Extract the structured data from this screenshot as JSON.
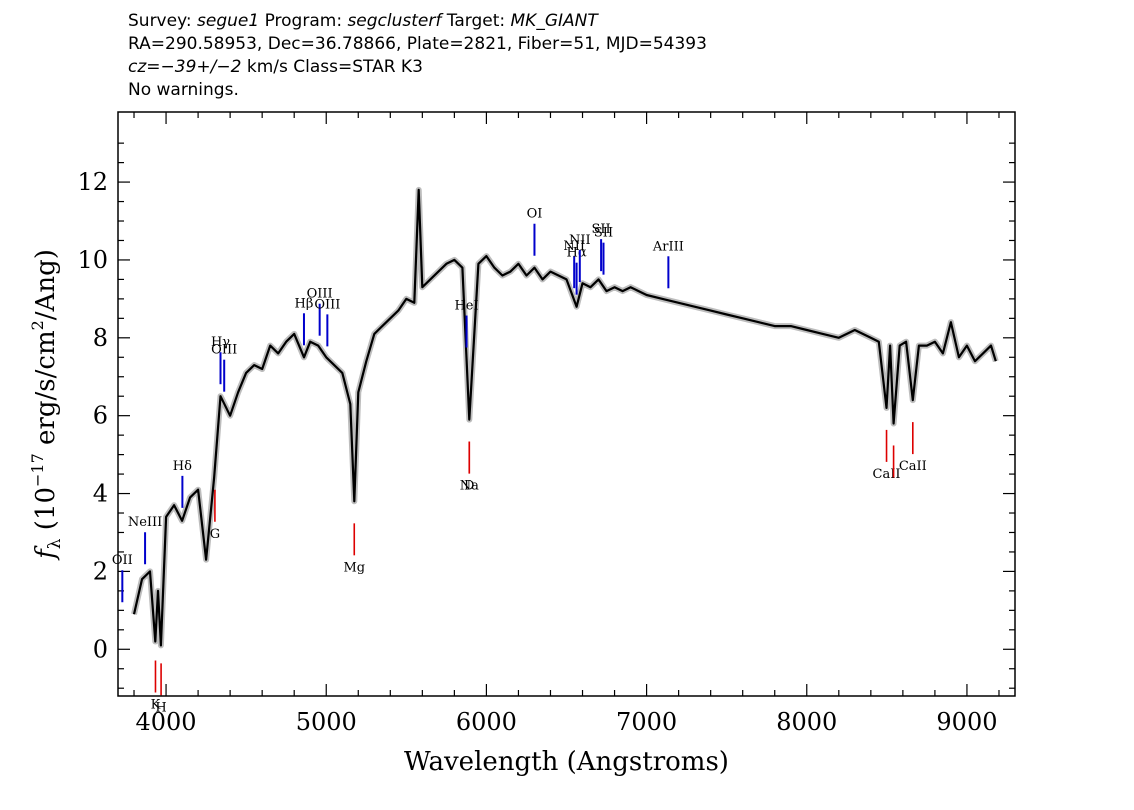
{
  "header": {
    "line1": {
      "survey_label": "Survey: ",
      "survey": "segue1",
      "program_label": " Program: ",
      "program": "segclusterf",
      "target_label": " Target: ",
      "target": "MK_GIANT"
    },
    "line2": "RA=290.58953, Dec=36.78866, Plate=2821, Fiber=51, MJD=54393",
    "line3": {
      "cz": "cz",
      "cz_eq": "=",
      "cz_value": "−39+/−2",
      "cz_rest": " km/s Class=STAR K3"
    },
    "line4": "No warnings."
  },
  "chart_data": {
    "type": "line",
    "xlabel": "Wavelength (Angstroms)",
    "ylabel": "fλ (10⁻¹⁷ erg/s/cm²/Ang)",
    "ylabel_parts": {
      "f": "f",
      "sub": "λ",
      "pre": " (10",
      "exp": "−17",
      "mid": " erg/s/cm",
      "exp2": "2",
      "post": "/Ang)"
    },
    "xlim": [
      3700,
      9300
    ],
    "ylim": [
      -1.2,
      13.8
    ],
    "x_ticks": [
      4000,
      5000,
      6000,
      7000,
      8000,
      9000
    ],
    "x_tick_labels": [
      "4000",
      "5000",
      "6000",
      "7000",
      "8000",
      "9000"
    ],
    "y_ticks": [
      0,
      2,
      4,
      6,
      8,
      10,
      12
    ],
    "y_tick_labels": [
      "0",
      "2",
      "4",
      "6",
      "8",
      "10",
      "12"
    ],
    "grid": false,
    "series": [
      {
        "style": "flux",
        "color": "#000000",
        "x": [
          3800,
          3850,
          3900,
          3933,
          3950,
          3968,
          4000,
          4050,
          4100,
          4150,
          4200,
          4250,
          4300,
          4340,
          4400,
          4450,
          4500,
          4550,
          4600,
          4650,
          4700,
          4750,
          4800,
          4861,
          4900,
          4950,
          5000,
          5050,
          5100,
          5150,
          5175,
          5200,
          5250,
          5300,
          5350,
          5400,
          5450,
          5500,
          5550,
          5577,
          5600,
          5650,
          5700,
          5750,
          5800,
          5850,
          5893,
          5950,
          6000,
          6050,
          6100,
          6150,
          6200,
          6250,
          6300,
          6350,
          6400,
          6450,
          6500,
          6563,
          6600,
          6650,
          6700,
          6750,
          6800,
          6850,
          6900,
          6950,
          7000,
          7100,
          7200,
          7300,
          7400,
          7500,
          7600,
          7700,
          7800,
          7900,
          8000,
          8100,
          8200,
          8300,
          8400,
          8450,
          8498,
          8520,
          8542,
          8580,
          8620,
          8662,
          8700,
          8750,
          8800,
          8850,
          8900,
          8950,
          9000,
          9050,
          9100,
          9150,
          9180
        ],
        "y": [
          0.9,
          1.8,
          2.0,
          0.2,
          1.5,
          0.1,
          3.4,
          3.7,
          3.3,
          3.9,
          4.1,
          2.3,
          4.4,
          6.5,
          6.0,
          6.6,
          7.1,
          7.3,
          7.2,
          7.8,
          7.6,
          7.9,
          8.1,
          7.5,
          7.9,
          7.8,
          7.5,
          7.3,
          7.1,
          6.3,
          3.8,
          6.6,
          7.4,
          8.1,
          8.3,
          8.5,
          8.7,
          9.0,
          8.9,
          11.8,
          9.3,
          9.5,
          9.7,
          9.9,
          10.0,
          9.8,
          5.9,
          9.9,
          10.1,
          9.8,
          9.6,
          9.7,
          9.9,
          9.6,
          9.8,
          9.5,
          9.7,
          9.6,
          9.5,
          8.8,
          9.4,
          9.3,
          9.5,
          9.2,
          9.3,
          9.2,
          9.3,
          9.2,
          9.1,
          9.0,
          8.9,
          8.8,
          8.7,
          8.6,
          8.5,
          8.4,
          8.3,
          8.3,
          8.2,
          8.1,
          8.0,
          8.2,
          8.0,
          7.9,
          6.2,
          7.8,
          5.8,
          7.8,
          7.9,
          6.4,
          7.8,
          7.8,
          7.9,
          7.6,
          8.4,
          7.5,
          7.8,
          7.4,
          7.6,
          7.8,
          7.4
        ]
      }
    ],
    "line_markers": [
      {
        "label": "OII",
        "x": 3727,
        "color": "#0000cc",
        "side": "upper"
      },
      {
        "label": "NeIII",
        "x": 3869,
        "color": "#0000cc",
        "side": "upper"
      },
      {
        "label": "Hδ",
        "x": 4102,
        "color": "#0000cc",
        "side": "upper"
      },
      {
        "label": "Hγ",
        "x": 4340,
        "color": "#0000cc",
        "side": "upper"
      },
      {
        "label": "OIII",
        "x": 4363,
        "color": "#0000cc",
        "side": "upper"
      },
      {
        "label": "Hβ",
        "x": 4861,
        "color": "#0000cc",
        "side": "upper"
      },
      {
        "label": "OIII",
        "x": 4959,
        "color": "#0000cc",
        "side": "upper"
      },
      {
        "label": "OIII",
        "x": 5007,
        "color": "#0000cc",
        "side": "upper"
      },
      {
        "label": "HeI",
        "x": 5876,
        "color": "#0000cc",
        "side": "upper"
      },
      {
        "label": "OI",
        "x": 6300,
        "color": "#0000cc",
        "side": "upper"
      },
      {
        "label": "NII",
        "x": 6548,
        "color": "#0000cc",
        "side": "upper"
      },
      {
        "label": "Hα",
        "x": 6563,
        "color": "#0000cc",
        "side": "upper"
      },
      {
        "label": "NII",
        "x": 6583,
        "color": "#0000cc",
        "side": "upper"
      },
      {
        "label": "SII",
        "x": 6716,
        "color": "#0000cc",
        "side": "upper"
      },
      {
        "label": "SII",
        "x": 6731,
        "color": "#0000cc",
        "side": "upper"
      },
      {
        "label": "ArIII",
        "x": 7136,
        "color": "#0000cc",
        "side": "upper"
      },
      {
        "label": "K",
        "x": 3934,
        "color": "#dd0000",
        "side": "lower"
      },
      {
        "label": "H",
        "x": 3969,
        "color": "#dd0000",
        "side": "lower"
      },
      {
        "label": "G",
        "x": 4305,
        "color": "#dd0000",
        "side": "lower"
      },
      {
        "label": "Mg",
        "x": 5175,
        "color": "#dd0000",
        "side": "lower"
      },
      {
        "label": "Na",
        "x": 5893,
        "color": "#dd0000",
        "side": "lower"
      },
      {
        "label": "D",
        "x": 5893,
        "color": "#dd0000",
        "side": "lower"
      },
      {
        "label": "CaII",
        "x": 8498,
        "color": "#dd0000",
        "side": "lower"
      },
      {
        "label": "CaII",
        "x": 8542,
        "color": "#dd0000",
        "side": "lower"
      },
      {
        "label": "CaII",
        "x": 8662,
        "color": "#dd0000",
        "side": "lower"
      }
    ]
  }
}
